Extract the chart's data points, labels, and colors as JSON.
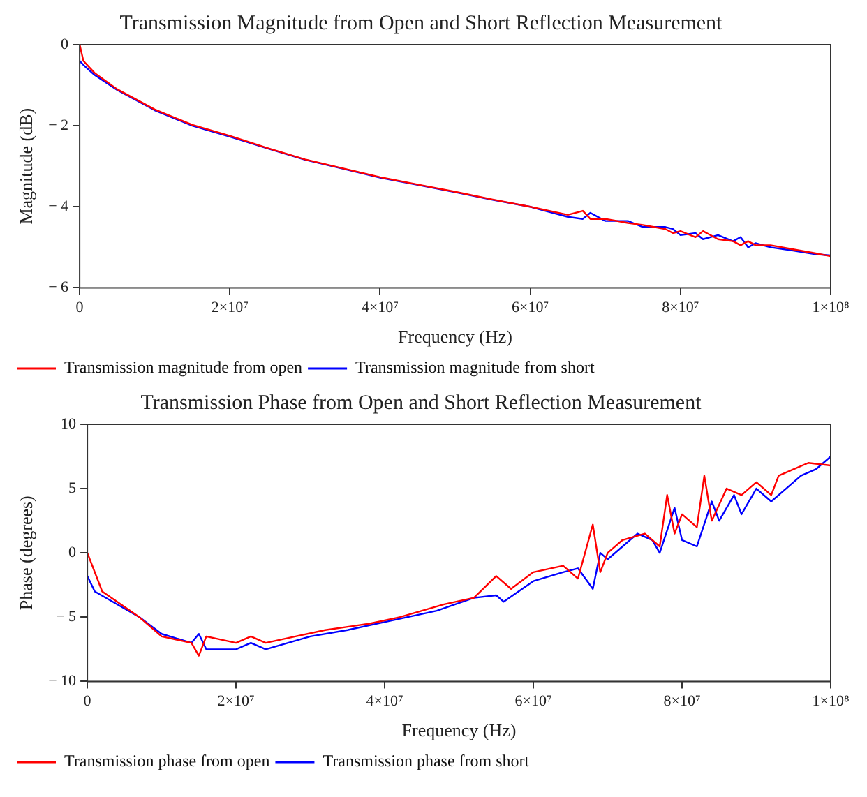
{
  "chart_data": [
    {
      "type": "line",
      "title": "Transmission Magnitude from Open and Short Reflection Measurement",
      "xlabel": "Frequency (Hz)",
      "ylabel": "Magnitude (dB)",
      "xlim": [
        0,
        100000000
      ],
      "xticks": [
        0,
        {
          "value": 20000000,
          "label": "2×10⁷"
        },
        {
          "value": 40000000,
          "label": "4×10⁷"
        },
        {
          "value": 60000000,
          "label": "6×10⁷"
        },
        {
          "value": 80000000,
          "label": "8×10⁷"
        },
        {
          "value": 100000000,
          "label": "1×10⁸"
        }
      ],
      "ylim": [
        -6,
        0
      ],
      "yticks": [
        -6,
        -4,
        -2,
        0
      ],
      "grid": false,
      "legend": "bottom",
      "marker": "none",
      "line_style": "solid",
      "series": [
        {
          "name": "Transmission magnitude from open",
          "color": "#ff0000",
          "x": [
            0,
            500000,
            2000000,
            5000000,
            10000000,
            15000000,
            20000000,
            25000000,
            30000000,
            35000000,
            40000000,
            45000000,
            50000000,
            55000000,
            60000000,
            65000000,
            67000000,
            68000000,
            70000000,
            73000000,
            75000000,
            78000000,
            79000000,
            80000000,
            82000000,
            83000000,
            85000000,
            87000000,
            88000000,
            89000000,
            90000000,
            92000000,
            95000000,
            98000000,
            100000000
          ],
          "values": [
            0,
            -0.4,
            -0.7,
            -1.1,
            -1.6,
            -1.98,
            -2.25,
            -2.55,
            -2.83,
            -3.05,
            -3.27,
            -3.45,
            -3.63,
            -3.82,
            -4.0,
            -4.2,
            -4.1,
            -4.3,
            -4.3,
            -4.4,
            -4.45,
            -4.55,
            -4.65,
            -4.6,
            -4.75,
            -4.6,
            -4.8,
            -4.85,
            -4.95,
            -4.85,
            -4.95,
            -4.95,
            -5.05,
            -5.15,
            -5.22
          ]
        },
        {
          "name": "Transmission magnitude from short",
          "color": "#0000ff",
          "x": [
            0,
            500000,
            2000000,
            5000000,
            10000000,
            15000000,
            20000000,
            25000000,
            30000000,
            35000000,
            40000000,
            45000000,
            50000000,
            55000000,
            60000000,
            65000000,
            67000000,
            68000000,
            70000000,
            73000000,
            75000000,
            78000000,
            79000000,
            80000000,
            82000000,
            83000000,
            85000000,
            87000000,
            88000000,
            89000000,
            90000000,
            92000000,
            95000000,
            98000000,
            100000000
          ],
          "values": [
            -0.4,
            -0.5,
            -0.75,
            -1.12,
            -1.62,
            -2.0,
            -2.27,
            -2.56,
            -2.84,
            -3.06,
            -3.28,
            -3.46,
            -3.64,
            -3.83,
            -4.0,
            -4.25,
            -4.3,
            -4.15,
            -4.35,
            -4.35,
            -4.5,
            -4.5,
            -4.55,
            -4.7,
            -4.65,
            -4.8,
            -4.7,
            -4.85,
            -4.75,
            -5.0,
            -4.9,
            -5.0,
            -5.08,
            -5.17,
            -5.2
          ]
        }
      ]
    },
    {
      "type": "line",
      "title": "Transmission Phase from Open and Short Reflection Measurement",
      "xlabel": "Frequency (Hz)",
      "ylabel": "Phase (degrees)",
      "xlim": [
        0,
        100000000
      ],
      "xticks": [
        0,
        {
          "value": 20000000,
          "label": "2×10⁷"
        },
        {
          "value": 40000000,
          "label": "4×10⁷"
        },
        {
          "value": 60000000,
          "label": "6×10⁷"
        },
        {
          "value": 80000000,
          "label": "8×10⁷"
        },
        {
          "value": 100000000,
          "label": "1×10⁸"
        }
      ],
      "ylim": [
        -10,
        10
      ],
      "yticks": [
        -10,
        -5,
        0,
        5,
        10
      ],
      "grid": false,
      "legend": "bottom",
      "marker": "none",
      "line_style": "solid",
      "series": [
        {
          "name": "Transmission phase from open",
          "color": "#ff0000",
          "x": [
            0,
            2000000,
            7000000,
            10000000,
            14000000,
            15000000,
            16000000,
            20000000,
            22000000,
            24000000,
            28000000,
            32000000,
            38000000,
            42000000,
            48000000,
            52000000,
            55000000,
            57000000,
            60000000,
            64000000,
            66000000,
            68000000,
            69000000,
            70000000,
            72000000,
            75000000,
            77000000,
            78000000,
            79000000,
            80000000,
            82000000,
            83000000,
            84000000,
            86000000,
            88000000,
            90000000,
            92000000,
            93000000,
            95000000,
            97000000,
            100000000
          ],
          "values": [
            0,
            -3,
            -5,
            -6.5,
            -7,
            -8,
            -6.5,
            -7,
            -6.5,
            -7,
            -6.5,
            -6,
            -5.5,
            -5,
            -4,
            -3.5,
            -1.8,
            -2.8,
            -1.5,
            -1,
            -2,
            2.2,
            -1.5,
            0,
            1,
            1.5,
            0.5,
            4.5,
            1.5,
            3,
            2,
            6,
            2.5,
            5,
            4.5,
            5.5,
            4.5,
            6,
            6.5,
            7,
            6.8
          ]
        },
        {
          "name": "Transmission phase from short",
          "color": "#0000ff",
          "x": [
            0,
            1000000,
            7000000,
            10000000,
            14000000,
            15000000,
            16000000,
            20000000,
            22000000,
            24000000,
            30000000,
            35000000,
            43000000,
            47000000,
            52000000,
            55000000,
            56000000,
            60000000,
            64000000,
            66000000,
            68000000,
            69000000,
            70000000,
            72000000,
            74000000,
            76000000,
            77000000,
            79000000,
            80000000,
            82000000,
            84000000,
            85000000,
            87000000,
            88000000,
            90000000,
            92000000,
            94000000,
            96000000,
            98000000,
            100000000
          ],
          "values": [
            -1.8,
            -3,
            -5,
            -6.3,
            -7,
            -6.3,
            -7.5,
            -7.5,
            -7,
            -7.5,
            -6.5,
            -6,
            -5,
            -4.5,
            -3.5,
            -3.3,
            -3.8,
            -2.2,
            -1.5,
            -1.2,
            -2.8,
            0,
            -0.5,
            0.5,
            1.5,
            1,
            0,
            3.5,
            1,
            0.5,
            4,
            2.5,
            4.5,
            3,
            5,
            4,
            5,
            6,
            6.5,
            7.5
          ]
        }
      ]
    }
  ]
}
